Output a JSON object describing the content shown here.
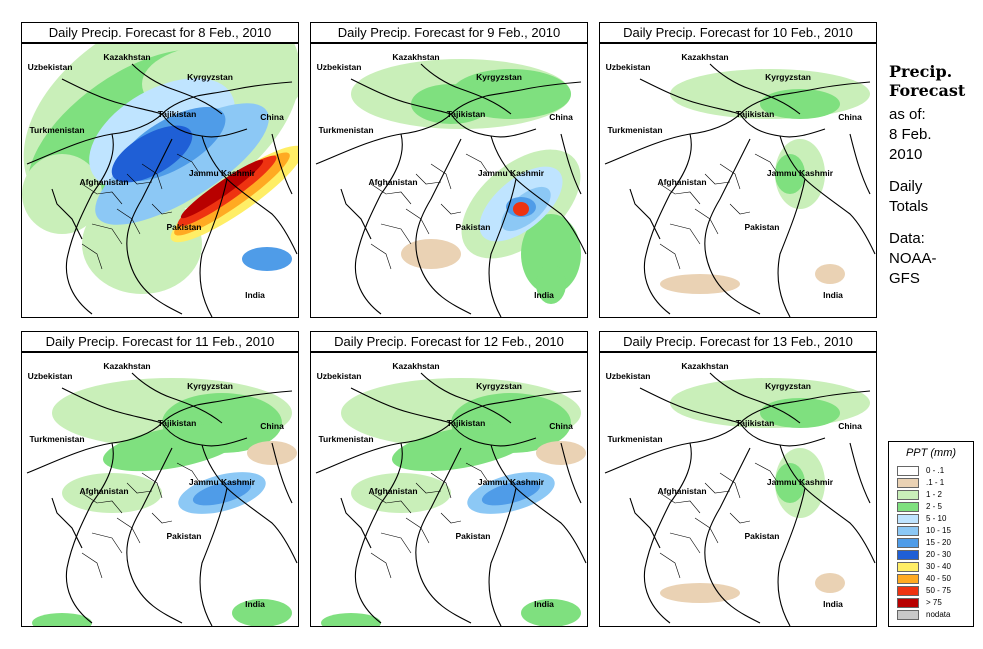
{
  "panels": [
    {
      "title": "Daily Precip. Forecast for  8 Feb., 2010",
      "intensity": "high"
    },
    {
      "title": "Daily Precip. Forecast for  9 Feb., 2010",
      "intensity": "medium"
    },
    {
      "title": "Daily Precip. Forecast for  10 Feb., 2010",
      "intensity": "low"
    },
    {
      "title": "Daily Precip. Forecast for  11 Feb., 2010",
      "intensity": "medium-low"
    },
    {
      "title": "Daily Precip. Forecast for  12 Feb., 2010",
      "intensity": "medium-low"
    },
    {
      "title": "Daily Precip. Forecast for  13 Feb., 2010",
      "intensity": "low"
    }
  ],
  "region_labels": {
    "kazakhstan": "Kazakhstan",
    "uzbekistan": "Uzbekistan",
    "kyrgyzstan": "Kyrgyzstan",
    "tajikistan": "Tajikistan",
    "turkmenistan": "Turkmenistan",
    "china": "China",
    "afghanistan": "Afghanistan",
    "jammu_kashmir": "Jammu Kashmir",
    "pakistan": "Pakistan",
    "india": "India"
  },
  "side": {
    "title_line1": "Precip.",
    "title_line2": "Forecast",
    "asof_line1": "as of:",
    "asof_line2": "8 Feb.",
    "asof_line3": "2010",
    "daily_line1": "Daily",
    "daily_line2": "Totals",
    "data_line1": "Data:",
    "data_line2": "NOAA-",
    "data_line3": "GFS"
  },
  "legend": {
    "title": "PPT (mm)",
    "items": [
      {
        "label": "0 - .1",
        "color": "#ffffff"
      },
      {
        "label": ".1 - 1",
        "color": "#ead2b4"
      },
      {
        "label": "1 - 2",
        "color": "#c9efb9"
      },
      {
        "label": "2 - 5",
        "color": "#7fe07f"
      },
      {
        "label": "5 - 10",
        "color": "#bfe4ff"
      },
      {
        "label": "10 - 15",
        "color": "#8cc8f5"
      },
      {
        "label": "15 - 20",
        "color": "#4f9ce8"
      },
      {
        "label": "20 - 30",
        "color": "#1f5fd6"
      },
      {
        "label": "30 - 40",
        "color": "#ffee66"
      },
      {
        "label": "40 - 50",
        "color": "#ffaa22"
      },
      {
        "label": "50 - 75",
        "color": "#ee3311"
      },
      {
        "label": "> 75",
        "color": "#b80000"
      },
      {
        "label": "nodata",
        "color": "#c8c8c8"
      }
    ]
  }
}
